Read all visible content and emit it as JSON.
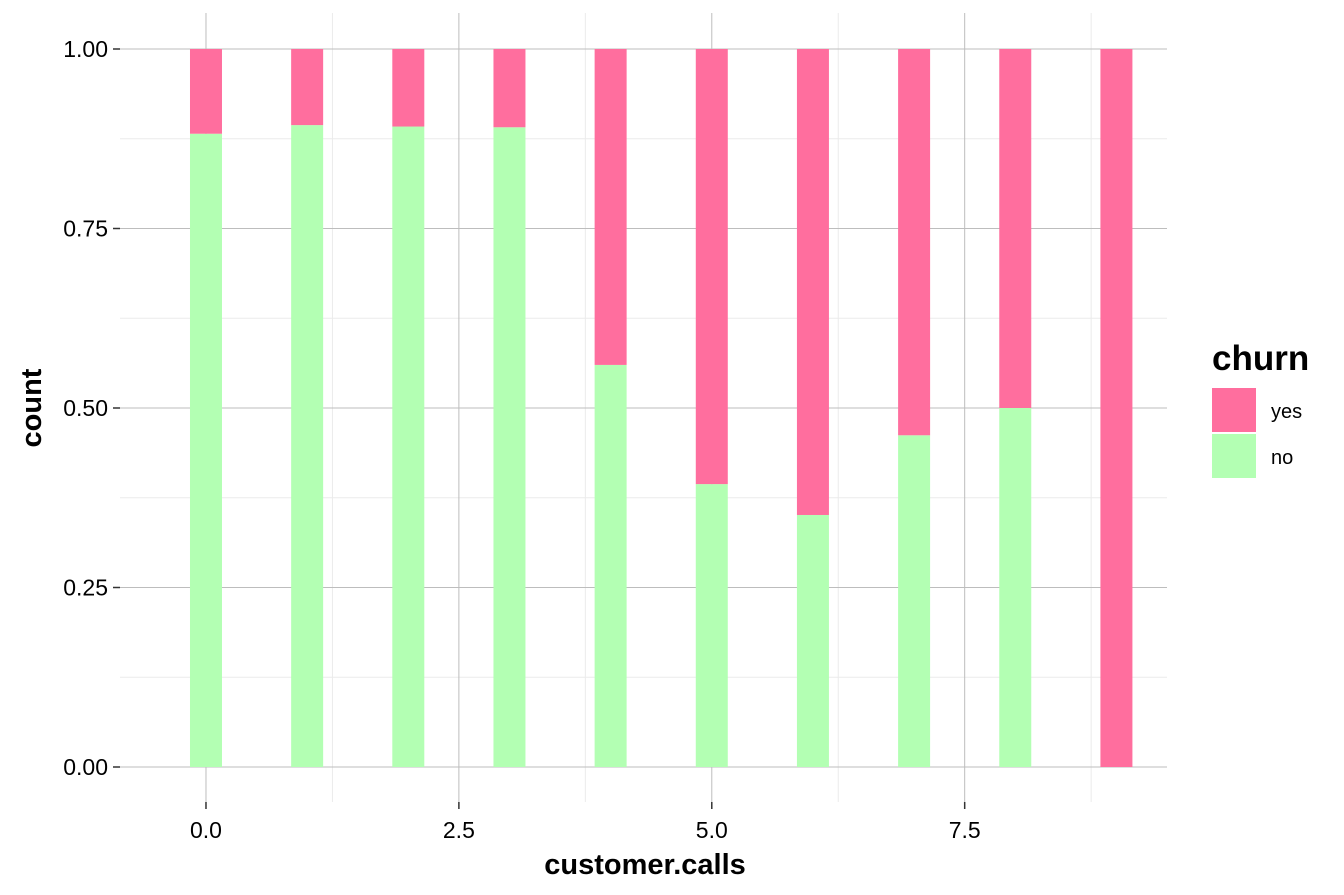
{
  "chart_data": {
    "type": "bar",
    "stacked": true,
    "position": "fill",
    "xlabel": "customer.calls",
    "ylabel": "count",
    "x": [
      0,
      1,
      2,
      3,
      4,
      5,
      6,
      7,
      8,
      9
    ],
    "xlim": [
      -0.85,
      9.5
    ],
    "ylim": [
      0,
      1
    ],
    "x_ticks": [
      0,
      2.5,
      5,
      7.5
    ],
    "x_tick_labels": [
      "0.0",
      "2.5",
      "5.0",
      "7.5"
    ],
    "y_ticks": [
      0,
      0.25,
      0.5,
      0.75,
      1
    ],
    "y_tick_labels": [
      "0.00",
      "0.25",
      "0.50",
      "0.75",
      "1.00"
    ],
    "series": [
      {
        "name": "no",
        "color": "#b3ffb3",
        "values": [
          0.882,
          0.894,
          0.892,
          0.891,
          0.56,
          0.394,
          0.351,
          0.462,
          0.5,
          0
        ]
      },
      {
        "name": "yes",
        "color": "#ff6e9e",
        "values": [
          0.118,
          0.106,
          0.108,
          0.109,
          0.44,
          0.606,
          0.649,
          0.538,
          0.5,
          1
        ]
      }
    ],
    "legend": {
      "title": "churn",
      "position": "right",
      "entries": [
        {
          "label": "yes",
          "color": "#ff6e9e"
        },
        {
          "label": "no",
          "color": "#b3ffb3"
        }
      ]
    },
    "grid": true,
    "grid_color": "#bdbdbd",
    "minor_grid_color": "#ebebeb"
  }
}
